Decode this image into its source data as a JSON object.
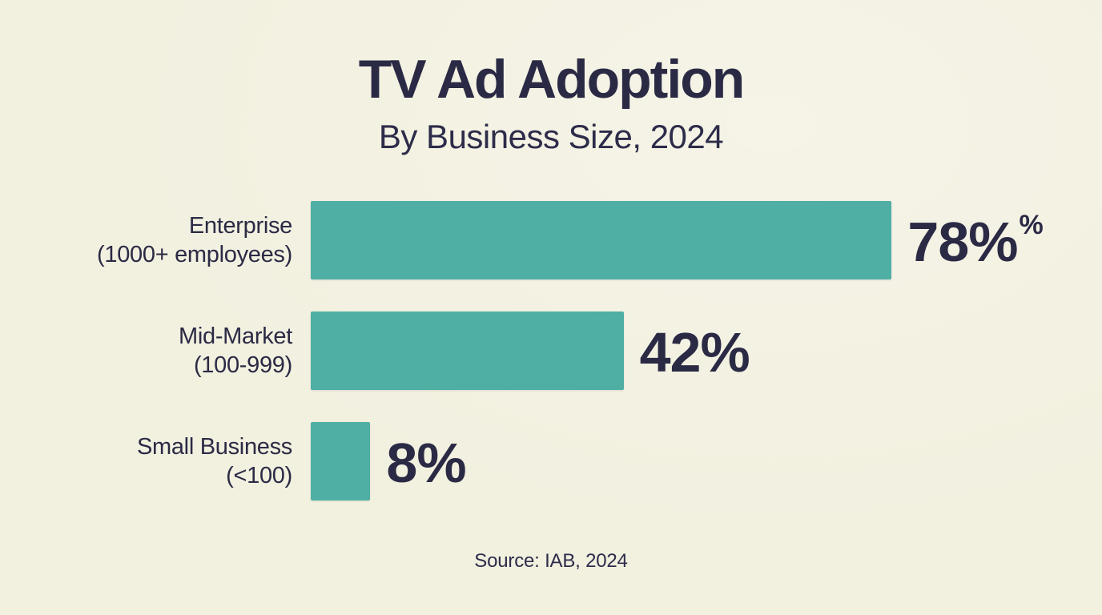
{
  "page": {
    "background_color": "#F2F0DF",
    "text_color": "#2B2A45",
    "accent_color": "#4FAFA4"
  },
  "header": {
    "title": "TV Ad Adoption",
    "subtitle": "By Business Size, 2024"
  },
  "footer": {
    "source": "Source: IAB, 2024"
  },
  "chart_data": {
    "type": "bar",
    "orientation": "horizontal",
    "title": "TV Ad Adoption",
    "subtitle": "By Business Size, 2024",
    "source": "Source: IAB, 2024",
    "categories": [
      "Enterprise (1000+ employees)",
      "Mid-Market (100-999)",
      "Small Business (<100)"
    ],
    "values": [
      78,
      42,
      8
    ],
    "xlim": [
      0,
      100
    ],
    "grid": false,
    "legend": false,
    "bar_color": "#4FAFA4",
    "rows": [
      {
        "label_line1": "Enterprise",
        "label_line2": "(1000+ employees)",
        "value": 78,
        "value_label": "78%",
        "value_superscript": "%"
      },
      {
        "label_line1": "Mid-Market",
        "label_line2": "(100-999)",
        "value": 42,
        "value_label": "42%",
        "value_superscript": ""
      },
      {
        "label_line1": "Small Business",
        "label_line2": "(<100)",
        "value": 8,
        "value_label": "8%",
        "value_superscript": ""
      }
    ]
  }
}
